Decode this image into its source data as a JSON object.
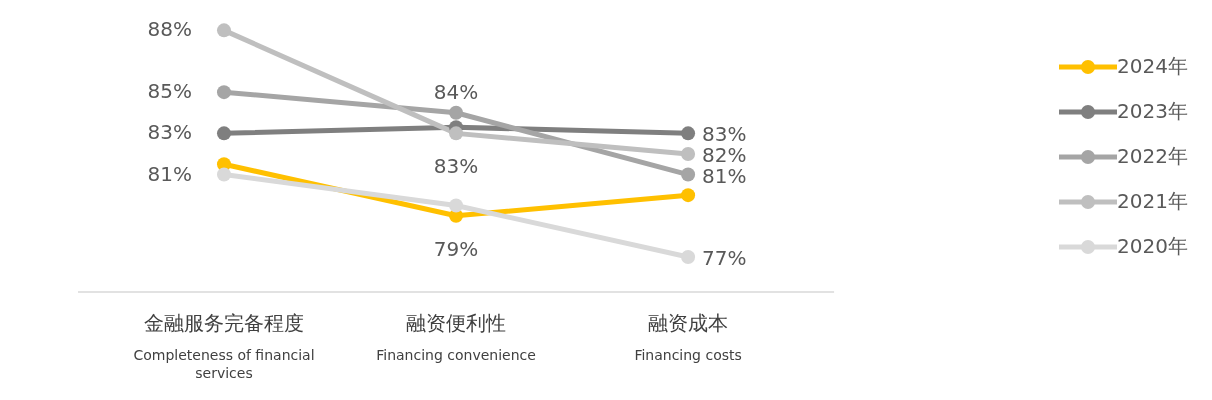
{
  "chart_data": {
    "type": "line",
    "categories": [
      "金融服务完备程度\nCompleteness of financial services",
      "融资便利性\nFinancing convenience",
      "融资成本\nFinancing costs"
    ],
    "series": [
      {
        "name": "2024年",
        "color": "#ffc000",
        "values": [
          81.5,
          79,
          80
        ],
        "value_labels": [
          null,
          "79%",
          null
        ]
      },
      {
        "name": "2023年",
        "color": "#7f7f7f",
        "values": [
          83,
          83.3,
          83
        ],
        "value_labels": [
          "83%",
          null,
          "83%"
        ]
      },
      {
        "name": "2022年",
        "color": "#a5a5a5",
        "values": [
          85,
          84,
          81
        ],
        "value_labels": [
          "85%",
          "84%",
          "81%"
        ]
      },
      {
        "name": "2021年",
        "color": "#bfbfbf",
        "values": [
          88,
          83,
          82
        ],
        "value_labels": [
          "88%",
          "83%",
          "82%"
        ]
      },
      {
        "name": "2020年",
        "color": "#d9d9d9",
        "values": [
          81,
          79.5,
          77
        ],
        "value_labels": [
          "81%",
          null,
          "77%"
        ]
      }
    ],
    "grid": false,
    "legend": "right",
    "marker": "circle",
    "line_style": "solid"
  }
}
